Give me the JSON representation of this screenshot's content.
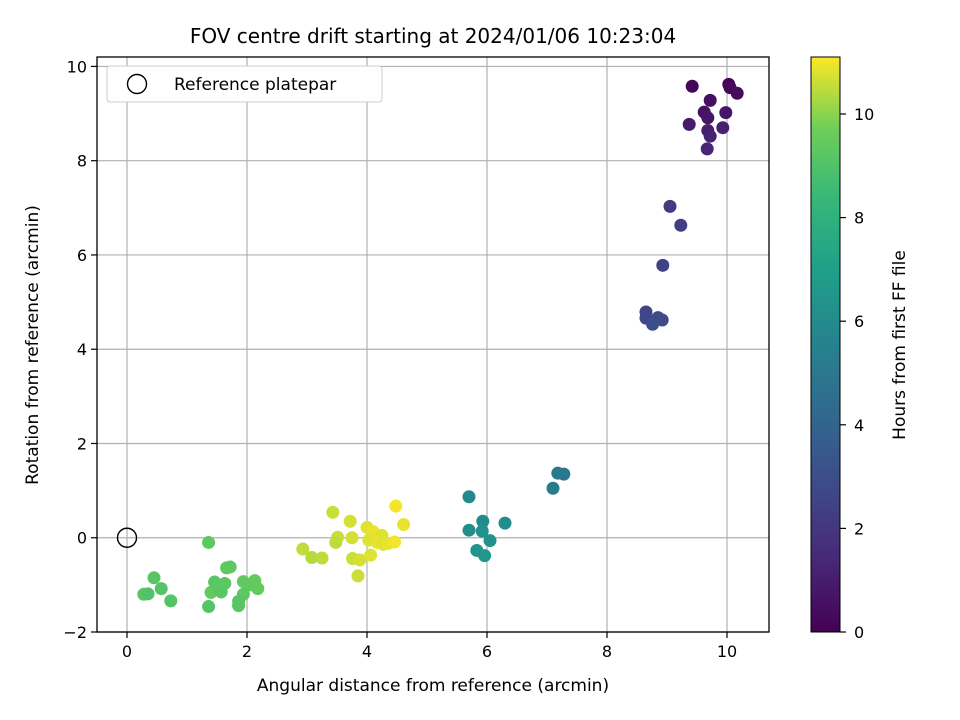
{
  "chart_data": {
    "type": "scatter",
    "title": "FOV centre drift starting at 2024/01/06 10:23:04",
    "xlabel": "Angular distance from reference (arcmin)",
    "ylabel": "Rotation from reference (arcmin)",
    "xlim": [
      -0.5,
      10.7
    ],
    "ylim": [
      -2.0,
      10.2
    ],
    "xticks": [
      0,
      2,
      4,
      6,
      8,
      10
    ],
    "yticks": [
      -2,
      0,
      2,
      4,
      6,
      8,
      10
    ],
    "grid": true,
    "legend": {
      "placement": "top-left",
      "entries": [
        "Reference platepar"
      ]
    },
    "reference_point": {
      "label": "Reference platepar",
      "x": 0,
      "y": 0
    },
    "colorbar": {
      "label": "Hours from first FF file",
      "colormap": "viridis",
      "range": [
        0,
        11.1
      ],
      "ticks": [
        0,
        2,
        4,
        6,
        8,
        10
      ]
    },
    "points": [
      {
        "x": 9.42,
        "y": 9.58,
        "t": 0.2
      },
      {
        "x": 10.03,
        "y": 9.62,
        "t": 0.1
      },
      {
        "x": 10.05,
        "y": 9.55,
        "t": 0.3
      },
      {
        "x": 10.17,
        "y": 9.43,
        "t": 0.4
      },
      {
        "x": 9.72,
        "y": 9.28,
        "t": 0.5
      },
      {
        "x": 9.62,
        "y": 9.03,
        "t": 0.6
      },
      {
        "x": 9.68,
        "y": 8.91,
        "t": 0.7
      },
      {
        "x": 9.98,
        "y": 9.02,
        "t": 0.8
      },
      {
        "x": 9.37,
        "y": 8.77,
        "t": 0.9
      },
      {
        "x": 9.68,
        "y": 8.64,
        "t": 1.0
      },
      {
        "x": 9.93,
        "y": 8.7,
        "t": 1.1
      },
      {
        "x": 9.72,
        "y": 8.52,
        "t": 1.2
      },
      {
        "x": 9.67,
        "y": 8.25,
        "t": 1.3
      },
      {
        "x": 9.05,
        "y": 7.03,
        "t": 2.2
      },
      {
        "x": 9.23,
        "y": 6.63,
        "t": 2.3
      },
      {
        "x": 8.93,
        "y": 5.78,
        "t": 2.5
      },
      {
        "x": 8.65,
        "y": 4.79,
        "t": 2.6
      },
      {
        "x": 8.65,
        "y": 4.66,
        "t": 2.7
      },
      {
        "x": 8.85,
        "y": 4.67,
        "t": 2.8
      },
      {
        "x": 8.92,
        "y": 4.62,
        "t": 2.9
      },
      {
        "x": 8.76,
        "y": 4.53,
        "t": 3.0
      },
      {
        "x": 7.28,
        "y": 1.35,
        "t": 5.0
      },
      {
        "x": 7.18,
        "y": 1.37,
        "t": 5.1
      },
      {
        "x": 7.1,
        "y": 1.05,
        "t": 5.2
      },
      {
        "x": 5.7,
        "y": 0.87,
        "t": 5.9
      },
      {
        "x": 5.93,
        "y": 0.35,
        "t": 6.0
      },
      {
        "x": 6.3,
        "y": 0.31,
        "t": 6.1
      },
      {
        "x": 5.7,
        "y": 0.16,
        "t": 6.2
      },
      {
        "x": 5.92,
        "y": 0.14,
        "t": 6.3
      },
      {
        "x": 6.05,
        "y": -0.06,
        "t": 6.4
      },
      {
        "x": 5.83,
        "y": -0.27,
        "t": 6.5
      },
      {
        "x": 5.96,
        "y": -0.38,
        "t": 6.6
      },
      {
        "x": 1.36,
        "y": -0.1,
        "t": 9.3
      },
      {
        "x": 0.45,
        "y": -0.85,
        "t": 9.2
      },
      {
        "x": 0.57,
        "y": -1.08,
        "t": 9.1
      },
      {
        "x": 0.28,
        "y": -1.2,
        "t": 9.2
      },
      {
        "x": 0.35,
        "y": -1.19,
        "t": 9.0
      },
      {
        "x": 0.73,
        "y": -1.34,
        "t": 9.1
      },
      {
        "x": 1.66,
        "y": -0.64,
        "t": 9.4
      },
      {
        "x": 1.72,
        "y": -0.62,
        "t": 9.3
      },
      {
        "x": 1.46,
        "y": -0.94,
        "t": 9.2
      },
      {
        "x": 1.63,
        "y": -0.97,
        "t": 9.3
      },
      {
        "x": 1.4,
        "y": -1.16,
        "t": 9.4
      },
      {
        "x": 1.5,
        "y": -1.08,
        "t": 9.3
      },
      {
        "x": 1.57,
        "y": -1.15,
        "t": 9.2
      },
      {
        "x": 1.36,
        "y": -1.46,
        "t": 9.1
      },
      {
        "x": 1.94,
        "y": -0.93,
        "t": 9.4
      },
      {
        "x": 2.13,
        "y": -0.91,
        "t": 9.5
      },
      {
        "x": 2.06,
        "y": -1.0,
        "t": 9.4
      },
      {
        "x": 2.18,
        "y": -1.08,
        "t": 9.5
      },
      {
        "x": 1.94,
        "y": -1.2,
        "t": 9.3
      },
      {
        "x": 1.86,
        "y": -1.35,
        "t": 9.2
      },
      {
        "x": 1.86,
        "y": -1.44,
        "t": 9.2
      },
      {
        "x": 3.43,
        "y": 0.54,
        "t": 10.6
      },
      {
        "x": 3.72,
        "y": 0.35,
        "t": 10.7
      },
      {
        "x": 4.48,
        "y": 0.67,
        "t": 11.0
      },
      {
        "x": 4.61,
        "y": 0.28,
        "t": 10.9
      },
      {
        "x": 4.0,
        "y": 0.22,
        "t": 10.8
      },
      {
        "x": 4.1,
        "y": 0.13,
        "t": 10.9
      },
      {
        "x": 4.25,
        "y": 0.05,
        "t": 10.8
      },
      {
        "x": 3.75,
        "y": 0.0,
        "t": 10.7
      },
      {
        "x": 3.51,
        "y": 0.01,
        "t": 10.6
      },
      {
        "x": 3.48,
        "y": -0.1,
        "t": 10.5
      },
      {
        "x": 4.03,
        "y": -0.05,
        "t": 10.8
      },
      {
        "x": 4.17,
        "y": -0.1,
        "t": 10.9
      },
      {
        "x": 4.27,
        "y": -0.14,
        "t": 10.8
      },
      {
        "x": 4.35,
        "y": -0.12,
        "t": 10.9
      },
      {
        "x": 4.46,
        "y": -0.09,
        "t": 11.0
      },
      {
        "x": 2.93,
        "y": -0.24,
        "t": 10.5
      },
      {
        "x": 3.08,
        "y": -0.42,
        "t": 10.4
      },
      {
        "x": 3.25,
        "y": -0.43,
        "t": 10.5
      },
      {
        "x": 3.76,
        "y": -0.44,
        "t": 10.6
      },
      {
        "x": 3.88,
        "y": -0.47,
        "t": 10.7
      },
      {
        "x": 4.06,
        "y": -0.37,
        "t": 10.8
      },
      {
        "x": 3.85,
        "y": -0.81,
        "t": 10.6
      }
    ]
  }
}
